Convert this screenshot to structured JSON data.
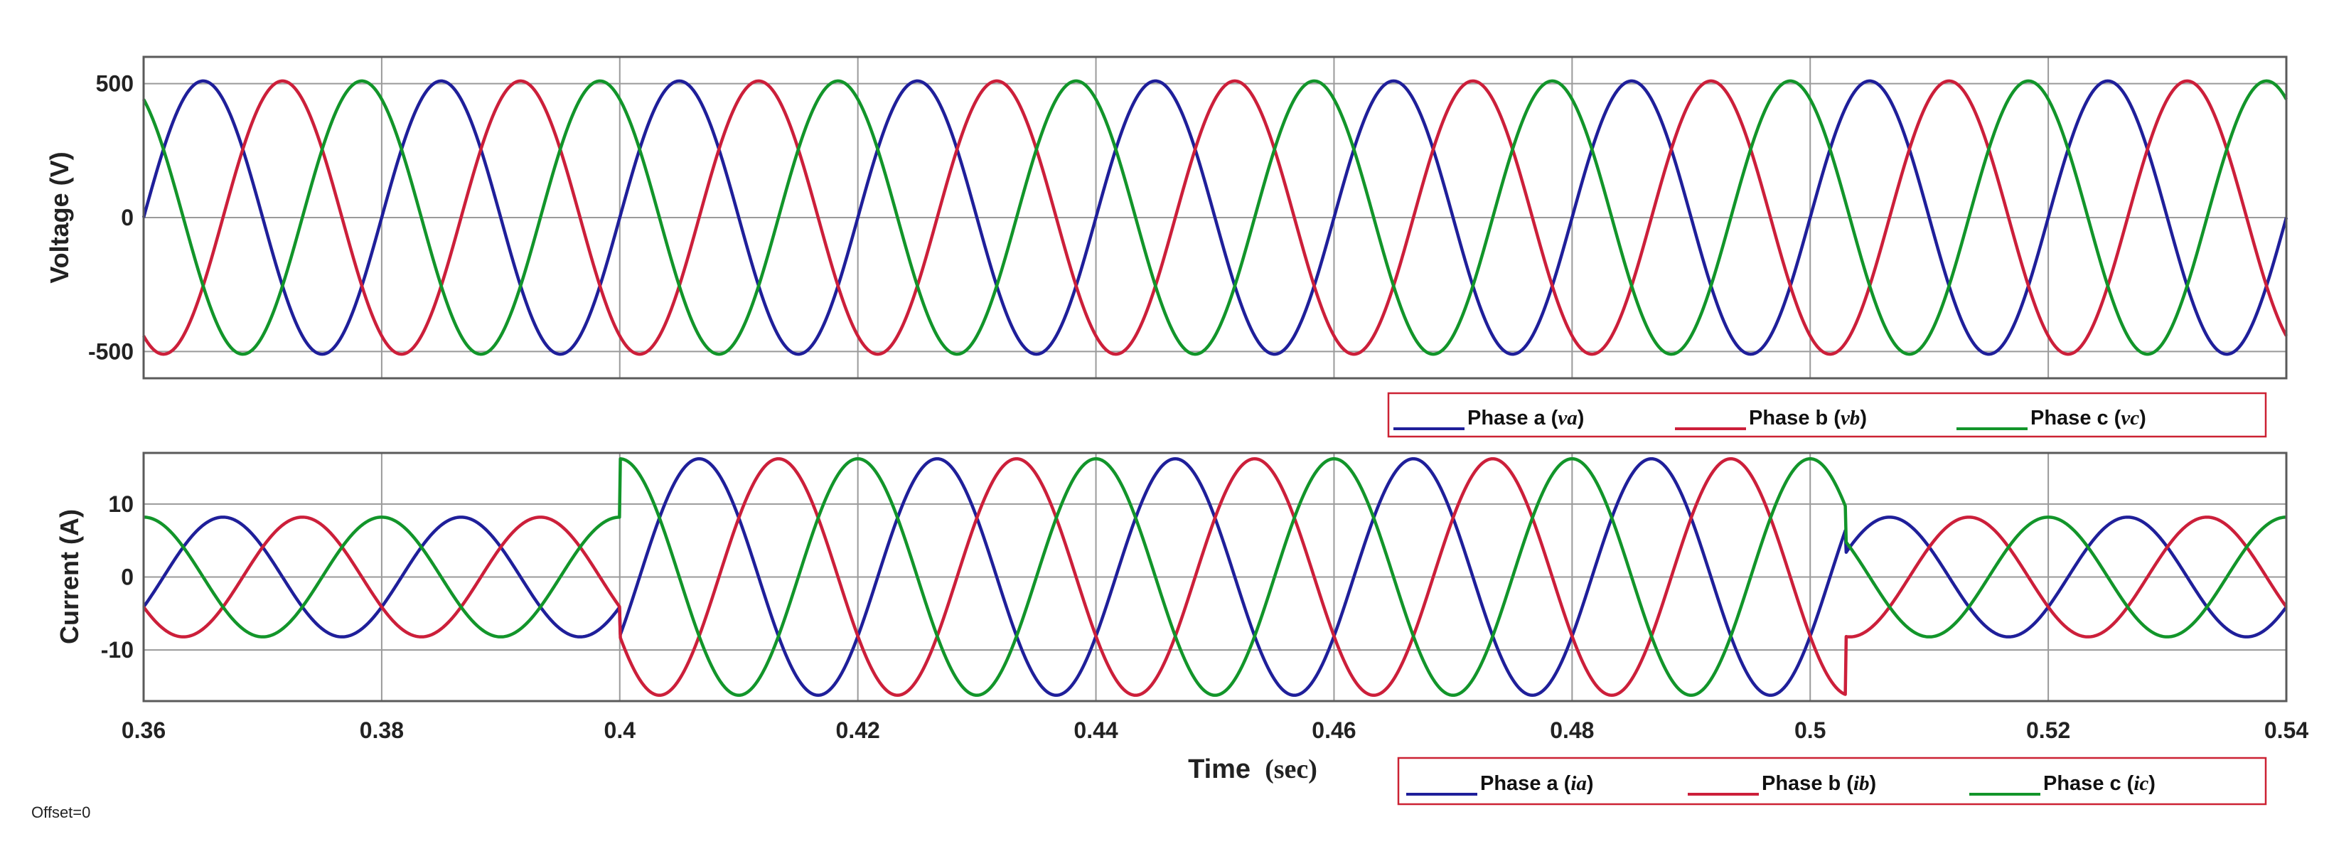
{
  "chart_data": [
    {
      "type": "line",
      "title": "",
      "ylabel": "Voltage (V)",
      "xlim": [
        0.36,
        0.54
      ],
      "ylim": [
        -600,
        600
      ],
      "xticks": [
        0.36,
        0.38,
        0.4,
        0.42,
        0.44,
        0.46,
        0.48,
        0.5,
        0.52,
        0.54
      ],
      "yticks": [
        -500,
        0,
        500
      ],
      "ytick_labels": [
        "-500",
        "0",
        "500"
      ],
      "grid": true,
      "legend_placement": "below-right",
      "frequency_hz": 50,
      "series": [
        {
          "legend_text": "Phase a (",
          "legend_symbol": "va",
          "color": "#1f1f9a",
          "amplitude": 510,
          "phase_deg": 0
        },
        {
          "legend_text": "Phase b (",
          "legend_symbol": "vb",
          "color": "#cc1f3a",
          "amplitude": 510,
          "phase_deg": -120
        },
        {
          "legend_text": "Phase c (",
          "legend_symbol": "vc",
          "color": "#12952a",
          "amplitude": 510,
          "phase_deg": 120
        }
      ]
    },
    {
      "type": "line",
      "title": "",
      "ylabel": "Current  (A)",
      "xlabel": "Time",
      "xlabel_unit": "(sec)",
      "xlim": [
        0.36,
        0.54
      ],
      "ylim": [
        -17,
        17
      ],
      "xticks": [
        0.36,
        0.38,
        0.4,
        0.42,
        0.44,
        0.46,
        0.48,
        0.5,
        0.52,
        0.54
      ],
      "xtick_labels": [
        "0.36",
        "0.38",
        "0.4",
        "0.42",
        "0.44",
        "0.46",
        "0.48",
        "0.5",
        "0.52",
        "0.54"
      ],
      "yticks": [
        -10,
        0,
        10
      ],
      "ytick_labels": [
        "-10",
        "0",
        "10"
      ],
      "grid": true,
      "legend_placement": "below-right",
      "frequency_hz": 50,
      "amplitude_segments": [
        {
          "from": 0.36,
          "to": 0.4,
          "amplitude": 8.2
        },
        {
          "from": 0.4,
          "to": 0.503,
          "amplitude": 16.2
        },
        {
          "from": 0.503,
          "to": 0.54,
          "amplitude": 8.2
        }
      ],
      "series": [
        {
          "legend_text": "Phase a (",
          "legend_symbol": "ia",
          "color": "#1f1f9a",
          "phase_deg": -30
        },
        {
          "legend_text": "Phase b (",
          "legend_symbol": "ib",
          "color": "#cc1f3a",
          "phase_deg": -150
        },
        {
          "legend_text": "Phase c (",
          "legend_symbol": "ic",
          "color": "#12952a",
          "phase_deg": 90
        }
      ]
    }
  ],
  "footer": {
    "offset_text": "Offset=0"
  }
}
